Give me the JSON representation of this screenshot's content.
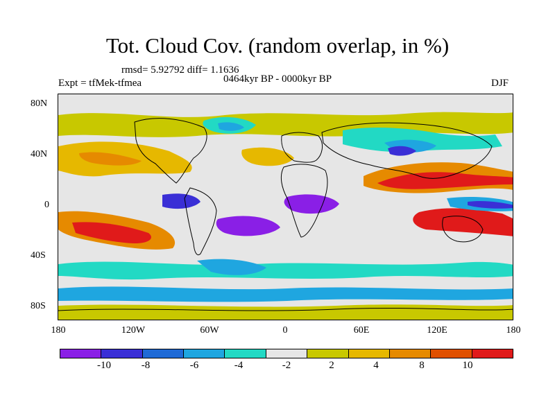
{
  "title": "Tot. Cloud Cov. (random overlap, in %)",
  "stats": "rmsd= 5.92792 diff= 1.1636",
  "experiment": "Expt = tfMek-tfmea",
  "period": "0464kyr BP - 0000kyr BP",
  "season": "DJF",
  "lat_ticks": [
    "80N",
    "40N",
    "0",
    "40S",
    "80S"
  ],
  "lon_ticks": [
    "180",
    "120W",
    "60W",
    "0",
    "60E",
    "120E",
    "180"
  ],
  "colorbar": {
    "colors": [
      "#8a1fe6",
      "#3a2fd6",
      "#1f6ad6",
      "#1fa6e0",
      "#22d9c4",
      "#e6e6e6",
      "#c8c800",
      "#e6b800",
      "#e68a00",
      "#e05000",
      "#e01a1a"
    ],
    "labels": [
      "-10",
      "-8",
      "-6",
      "-4",
      "-2",
      "2",
      "4",
      "8",
      "10"
    ]
  },
  "map_data": {
    "projection": "cylindrical-equidistant",
    "lon_range": [
      -180,
      180
    ],
    "lat_range": [
      -90,
      90
    ],
    "variable": "total cloud cover difference (%)"
  }
}
